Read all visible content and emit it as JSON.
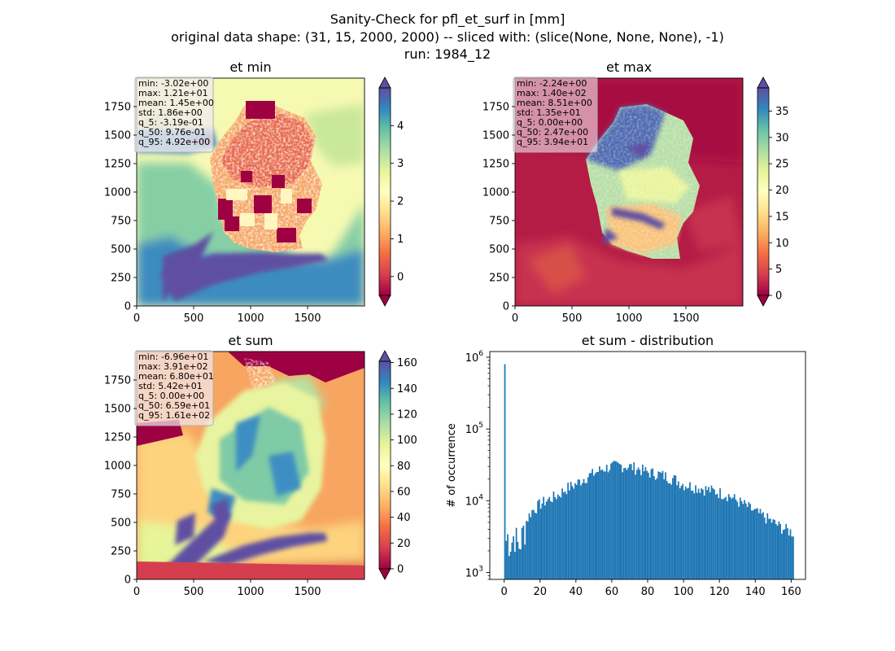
{
  "figure": {
    "title_lines": [
      "Sanity-Check for pfl_et_surf in [mm]",
      "original data shape: (31, 15, 2000, 2000) -- sliced with: (slice(None, None, None), -1)",
      "run: 1984_12"
    ]
  },
  "colors": {
    "hist_bar": "#1f77b4",
    "colormap": "Spectral",
    "stats_box_bg": "#f3e9ee"
  },
  "chart_data": [
    {
      "type": "heatmap",
      "title": "et min",
      "colormap": "Spectral",
      "xlim": [
        0,
        2000
      ],
      "ylim": [
        0,
        2000
      ],
      "xticks": [
        0,
        500,
        1000,
        1500
      ],
      "yticks": [
        0,
        250,
        500,
        750,
        1000,
        1250,
        1500,
        1750
      ],
      "colorbar": {
        "min": -0.5,
        "max": 5.0,
        "ticks": [
          0,
          1,
          2,
          3,
          4
        ],
        "extend": "both"
      },
      "stats": [
        "min: -3.02e+00",
        "max: 1.21e+01",
        "mean: 1.45e+00",
        "std: 1.86e+00",
        "q_5: -3.19e-01",
        "q_50: 9.76e-01",
        "q_95: 4.92e+00"
      ]
    },
    {
      "type": "heatmap",
      "title": "et max",
      "colormap": "Spectral",
      "xlim": [
        0,
        2000
      ],
      "ylim": [
        0,
        2000
      ],
      "xticks": [
        0,
        500,
        1000,
        1500
      ],
      "yticks": [
        0,
        250,
        500,
        750,
        1000,
        1250,
        1500,
        1750
      ],
      "colorbar": {
        "min": 0,
        "max": 39.4,
        "ticks": [
          0,
          5,
          10,
          15,
          20,
          25,
          30,
          35
        ],
        "extend": "both"
      },
      "stats": [
        "min: -2.24e+00",
        "max: 1.40e+02",
        "mean: 8.51e+00",
        "std: 1.35e+01",
        "q_5: 0.00e+00",
        "q_50: 2.47e+00",
        "q_95: 3.94e+01"
      ]
    },
    {
      "type": "heatmap",
      "title": "et sum",
      "colormap": "Spectral",
      "xlim": [
        0,
        2000
      ],
      "ylim": [
        0,
        2000
      ],
      "xticks": [
        0,
        500,
        1000,
        1500
      ],
      "yticks": [
        0,
        250,
        500,
        750,
        1000,
        1250,
        1500,
        1750
      ],
      "colorbar": {
        "min": 0,
        "max": 161,
        "ticks": [
          0,
          20,
          40,
          60,
          80,
          100,
          120,
          140,
          160
        ],
        "extend": "both"
      },
      "stats": [
        "min: -6.96e+01",
        "max: 3.91e+02",
        "mean: 6.80e+01",
        "std: 5.42e+01",
        "q_5: 0.00e+00",
        "q_50: 6.59e+01",
        "q_95: 1.61e+02"
      ]
    },
    {
      "type": "bar",
      "title": "et sum - distribution",
      "ylabel": "# of occurrence",
      "xlabel": "",
      "yscale": "log",
      "xlim": [
        -8,
        168
      ],
      "ylim": [
        800,
        1200000
      ],
      "xticks": [
        0,
        20,
        40,
        60,
        80,
        100,
        120,
        140,
        160
      ],
      "yticks": [
        {
          "value": 1000,
          "base": "10",
          "exp": "3"
        },
        {
          "value": 10000,
          "base": "10",
          "exp": "4"
        },
        {
          "value": 100000,
          "base": "10",
          "exp": "5"
        },
        {
          "value": 1000000,
          "base": "10",
          "exp": "6"
        }
      ],
      "bins": {
        "start": 0,
        "width": 0.8
      },
      "curve": [
        [
          0,
          800000
        ],
        [
          0.8,
          2600
        ],
        [
          2,
          3200
        ],
        [
          4,
          2600
        ],
        [
          6,
          3600
        ],
        [
          8,
          2200
        ],
        [
          10,
          3200
        ],
        [
          12,
          5000
        ],
        [
          15,
          7000
        ],
        [
          20,
          9000
        ],
        [
          25,
          10500
        ],
        [
          30,
          12000
        ],
        [
          35,
          15000
        ],
        [
          40,
          17000
        ],
        [
          45,
          21000
        ],
        [
          50,
          24000
        ],
        [
          55,
          28000
        ],
        [
          60,
          30000
        ],
        [
          65,
          31000
        ],
        [
          70,
          30000
        ],
        [
          75,
          28000
        ],
        [
          80,
          25000
        ],
        [
          85,
          24000
        ],
        [
          90,
          22000
        ],
        [
          95,
          20000
        ],
        [
          100,
          17000
        ],
        [
          105,
          16000
        ],
        [
          110,
          15000
        ],
        [
          115,
          14000
        ],
        [
          120,
          13000
        ],
        [
          125,
          12000
        ],
        [
          130,
          10000
        ],
        [
          135,
          8500
        ],
        [
          140,
          7000
        ],
        [
          145,
          6000
        ],
        [
          150,
          5000
        ],
        [
          155,
          4200
        ],
        [
          161,
          3600
        ]
      ]
    }
  ]
}
